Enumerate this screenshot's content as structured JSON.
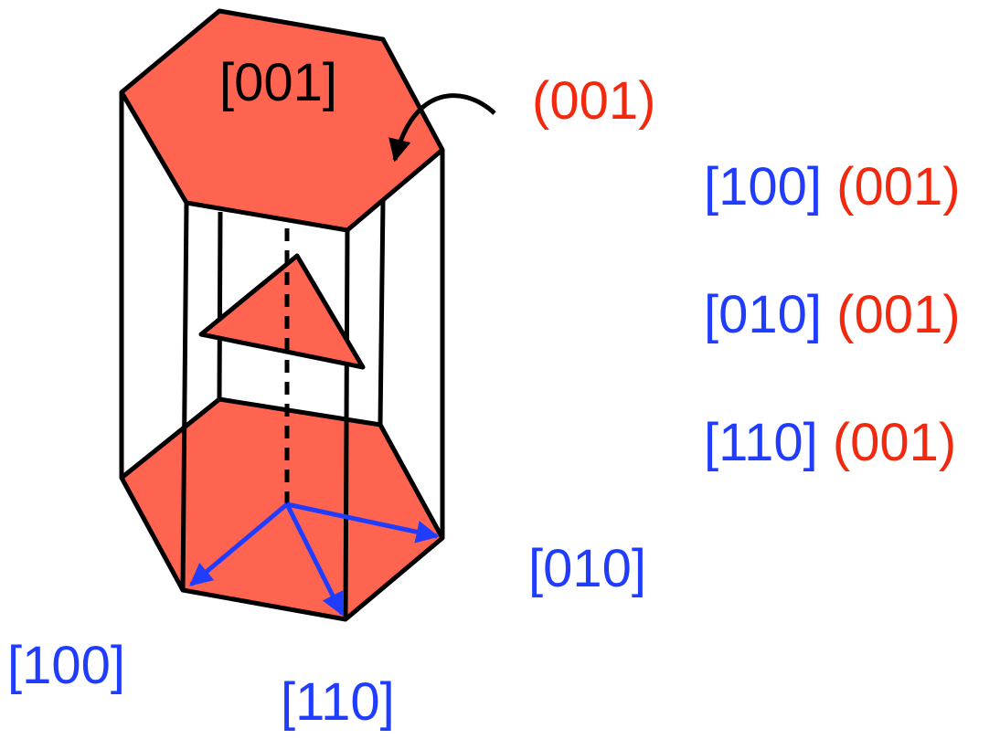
{
  "colors": {
    "face_fill": "#FF6450",
    "edge": "#000000",
    "direction": "#1F3CFF",
    "plane": "#F0290F"
  },
  "labels": {
    "axis_001": "[001]",
    "plane_001": "(001)",
    "dir_100": "[100]",
    "dir_010": "[010]",
    "dir_110": "[110]"
  },
  "slip_systems": [
    {
      "direction": "[100]",
      "plane": "(001)"
    },
    {
      "direction": "[010]",
      "plane": "(001)"
    },
    {
      "direction": "[110]",
      "plane": "(001)"
    }
  ]
}
